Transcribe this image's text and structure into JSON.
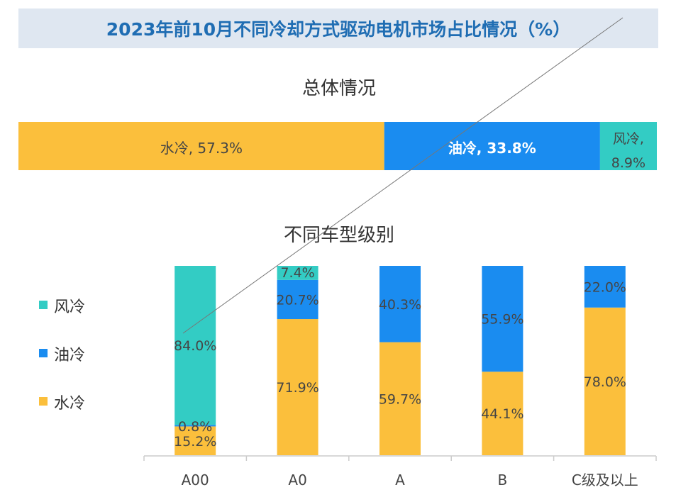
{
  "title": "2023年前10月不同冷却方式驱动电机市场占比情况（%）",
  "colors": {
    "water": "#fbbf3c",
    "oil": "#1a8cf0",
    "air": "#33ccc4",
    "title_bg": "#dfe7f1",
    "title_text": "#1f6db3",
    "label": "#454545"
  },
  "chart_data": [
    {
      "type": "bar",
      "orientation": "horizontal-stacked-100",
      "title": "总体情况",
      "series": [
        {
          "name": "水冷",
          "value": 57.3,
          "label": "水冷, 57.3%",
          "color": "#fbbf3c"
        },
        {
          "name": "油冷",
          "value": 33.8,
          "label": "油冷, 33.8%",
          "color": "#1a8cf0"
        },
        {
          "name": "风冷",
          "value": 8.9,
          "label": "风冷,",
          "label2": "8.9%",
          "color": "#33ccc4"
        }
      ]
    },
    {
      "type": "bar",
      "orientation": "vertical-stacked-100",
      "title": "不同车型级别",
      "categories": [
        "A00",
        "A0",
        "A",
        "B",
        "C级及以上"
      ],
      "legend_position": "left",
      "legend": [
        "风冷",
        "油冷",
        "水冷"
      ],
      "ylim": [
        0,
        100
      ],
      "grid": false,
      "series": [
        {
          "name": "水冷",
          "color": "#fbbf3c",
          "values": [
            15.2,
            71.9,
            59.7,
            44.1,
            78.0
          ]
        },
        {
          "name": "油冷",
          "color": "#1a8cf0",
          "values": [
            0.8,
            20.7,
            40.3,
            55.9,
            22.0
          ]
        },
        {
          "name": "风冷",
          "color": "#33ccc4",
          "values": [
            84.0,
            7.4,
            0,
            0,
            0
          ]
        }
      ]
    }
  ]
}
